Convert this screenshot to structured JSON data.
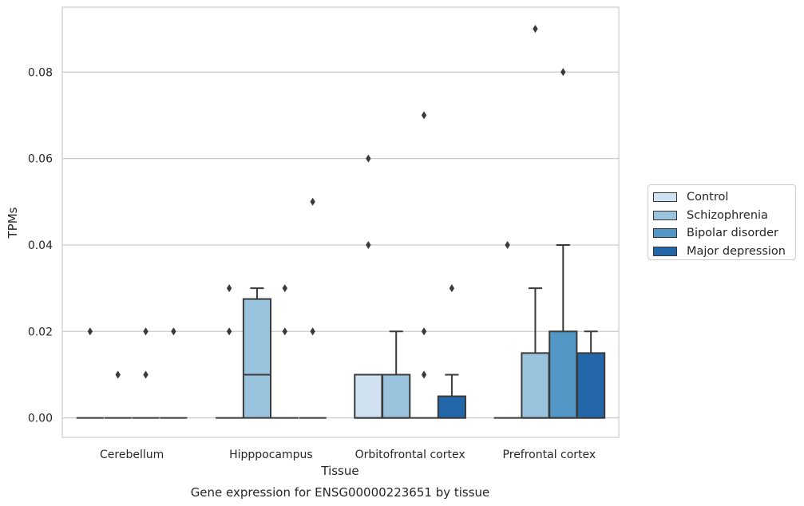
{
  "chart_data": {
    "type": "box",
    "caption": "Gene expression for ENSG00000223651 by tissue",
    "xlabel": "Tissue",
    "ylabel": "TPMs",
    "ylim": [
      -0.0045,
      0.095
    ],
    "yticks": [
      0.0,
      0.02,
      0.04,
      0.06,
      0.08
    ],
    "ytick_labels": [
      "0.00",
      "0.02",
      "0.04",
      "0.06",
      "0.08"
    ],
    "categories": [
      "Cerebellum",
      "Hipppocampus",
      "Orbitofrontal cortex",
      "Prefrontal cortex"
    ],
    "grid": true,
    "legend_position": "right",
    "series": [
      {
        "name": "Control",
        "color": "#d0e1f2",
        "boxes": [
          {
            "q1": 0,
            "median": 0,
            "q3": 0,
            "whisker_low": 0,
            "whisker_high": 0,
            "outliers": [
              0.02
            ]
          },
          {
            "q1": 0,
            "median": 0,
            "q3": 0,
            "whisker_low": 0,
            "whisker_high": 0,
            "outliers": [
              0.02,
              0.03
            ]
          },
          {
            "q1": 0,
            "median": 0,
            "q3": 0.01,
            "whisker_low": 0,
            "whisker_high": 0.01,
            "outliers": [
              0.04,
              0.06
            ]
          },
          {
            "q1": 0,
            "median": 0,
            "q3": 0,
            "whisker_low": 0,
            "whisker_high": 0,
            "outliers": [
              0.04
            ]
          }
        ]
      },
      {
        "name": "Schizophrenia",
        "color": "#9ac4de",
        "boxes": [
          {
            "q1": 0,
            "median": 0,
            "q3": 0,
            "whisker_low": 0,
            "whisker_high": 0,
            "outliers": [
              0.01
            ]
          },
          {
            "q1": 0,
            "median": 0.01,
            "q3": 0.0275,
            "whisker_low": 0,
            "whisker_high": 0.03,
            "outliers": []
          },
          {
            "q1": 0,
            "median": 0,
            "q3": 0.01,
            "whisker_low": 0,
            "whisker_high": 0.02,
            "outliers": []
          },
          {
            "q1": 0,
            "median": 0,
            "q3": 0.015,
            "whisker_low": 0,
            "whisker_high": 0.03,
            "outliers": [
              0.09
            ]
          }
        ]
      },
      {
        "name": "Bipolar disorder",
        "color": "#5296c6",
        "boxes": [
          {
            "q1": 0,
            "median": 0,
            "q3": 0,
            "whisker_low": 0,
            "whisker_high": 0,
            "outliers": [
              0.02,
              0.01
            ]
          },
          {
            "q1": 0,
            "median": 0,
            "q3": 0,
            "whisker_low": 0,
            "whisker_high": 0,
            "outliers": [
              0.03,
              0.02
            ]
          },
          {
            "q1": 0,
            "median": 0,
            "q3": 0,
            "whisker_low": 0,
            "whisker_high": 0,
            "outliers": [
              0.07,
              0.02,
              0.01
            ]
          },
          {
            "q1": 0,
            "median": 0,
            "q3": 0.02,
            "whisker_low": 0,
            "whisker_high": 0.04,
            "outliers": [
              0.08
            ]
          }
        ]
      },
      {
        "name": "Major depression",
        "color": "#2467a8",
        "boxes": [
          {
            "q1": 0,
            "median": 0,
            "q3": 0,
            "whisker_low": 0,
            "whisker_high": 0,
            "outliers": [
              0.02
            ]
          },
          {
            "q1": 0,
            "median": 0,
            "q3": 0,
            "whisker_low": 0,
            "whisker_high": 0,
            "outliers": [
              0.05,
              0.02
            ]
          },
          {
            "q1": 0,
            "median": 0,
            "q3": 0.005,
            "whisker_low": 0,
            "whisker_high": 0.01,
            "outliers": [
              0.03
            ]
          },
          {
            "q1": 0,
            "median": 0,
            "q3": 0.015,
            "whisker_low": 0,
            "whisker_high": 0.02,
            "outliers": []
          }
        ]
      }
    ]
  }
}
